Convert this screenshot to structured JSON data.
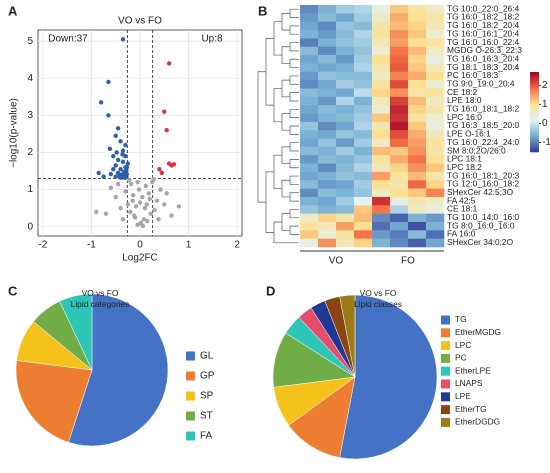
{
  "chart_data": [
    {
      "type": "scatter",
      "panel": "A",
      "title": "VO vs FO",
      "xlabel": "Log2FC",
      "ylabel": "−log10(p-value)",
      "annotations": [
        "Down:37",
        "Up:8"
      ],
      "xlim": [
        -2.1,
        2.1
      ],
      "ylim": [
        -0.25,
        5.3
      ],
      "xticks": [
        -2,
        -1,
        0,
        1,
        2
      ],
      "yticks": [
        0,
        1,
        2,
        3,
        4,
        5
      ],
      "grid": true,
      "thresholds": {
        "x": [
          -0.26,
          0.26
        ],
        "y": 1.3
      },
      "series": [
        {
          "color": "#2f5fa8",
          "x": [
            -0.35,
            -0.65,
            -0.8,
            -0.65,
            -0.45,
            -0.5,
            -0.4,
            -0.3,
            -0.35,
            -0.55,
            -0.3,
            -0.45,
            -0.35,
            -0.25,
            -0.5,
            -0.3,
            -0.4,
            -0.28,
            -0.33,
            -0.45,
            -0.27,
            -0.38,
            -0.3,
            -0.42,
            -0.5,
            -0.28,
            -0.35,
            -0.6,
            -0.75,
            -0.85,
            -0.55,
            -0.31,
            -0.4,
            -0.27,
            -0.62,
            -0.48,
            -0.36
          ],
          "y": [
            5.05,
            3.9,
            3.35,
            3.0,
            2.65,
            2.45,
            2.3,
            2.2,
            2.05,
            1.9,
            1.9,
            1.8,
            1.75,
            1.7,
            1.65,
            1.6,
            1.55,
            1.52,
            1.48,
            1.45,
            1.42,
            1.4,
            1.38,
            1.36,
            1.35,
            1.34,
            1.33,
            1.42,
            1.35,
            1.45,
            1.55,
            1.32,
            1.32,
            1.6,
            2.1,
            2.0,
            1.95
          ]
        },
        {
          "color": "#e0313a",
          "x": [
            0.6,
            0.5,
            0.55,
            0.6,
            0.65,
            0.7,
            0.4,
            0.45
          ],
          "y": [
            4.4,
            3.1,
            2.6,
            1.7,
            1.65,
            1.68,
            1.55,
            1.45
          ]
        },
        {
          "color": "#a6a6a6",
          "x": [
            -0.05,
            0.02,
            0.08,
            -0.12,
            0.15,
            -0.2,
            0.22,
            -0.08,
            0.1,
            -0.15,
            0.05,
            -0.25,
            0.18,
            -0.02,
            0.3,
            -0.3,
            0.12,
            -0.18,
            0.25,
            -0.1,
            0.35,
            -0.4,
            0.42,
            -0.5,
            0.5,
            -0.6,
            0.55,
            -0.7,
            0.65,
            0.0,
            -0.22,
            0.2,
            -0.05,
            0.06,
            -0.35,
            0.38,
            -0.45,
            0.28,
            -0.14,
            0.14,
            0.8,
            -0.9
          ],
          "y": [
            0.05,
            0.1,
            0.2,
            0.3,
            0.15,
            0.4,
            0.35,
            0.55,
            0.5,
            0.7,
            0.8,
            0.6,
            0.9,
            1.0,
            0.45,
            0.95,
            1.1,
            1.15,
            1.2,
            0.25,
            0.7,
            0.5,
            1.0,
            0.8,
            0.6,
            1.05,
            0.9,
            0.35,
            0.3,
            0.65,
            1.25,
            0.75,
            1.2,
            0.02,
            0.2,
            0.2,
            1.15,
            1.28,
            0.85,
            0.6,
            0.55,
            0.4
          ]
        }
      ]
    },
    {
      "type": "heatmap",
      "panel": "B",
      "groups": [
        "VO",
        "FO"
      ],
      "rows": [
        "TG 10:0_22:0_26:4",
        "TG 16:0_18:2_18:2",
        "TG 16:0_18:2_20:4",
        "TG 16:0_16:1_20:4",
        "TG 16:0_16:0_22:4",
        "MGDG O-26:3_22:3",
        "TG 16:0_16:3_20:4",
        "TG 18:1_18:3_20:4",
        "PC 16:0_18:3",
        "TG 9:0_19:0_20:4",
        "CE 18:2",
        "LPE 18:0",
        "TG 16:0_18:1_18:2",
        "LPC 16:0",
        "TG 16:3_18:5_20:0",
        "LPE O-16:1",
        "TG 16:0_22:4_24:0",
        "SM 8:0;2O/26:0",
        "LPC 18:1",
        "LPC 18:2",
        "TG 16:0_18:1_20:3",
        "TG 12:0_16:0_18:2",
        "SHexCer 42:5;3O",
        "FA 42:5",
        "CE 18:1",
        "TG 10:0_14:0_16:0",
        "TG 8:0_16:0_16:0",
        "FA 16:0",
        "SHexCer 34:0;2O"
      ],
      "values": [
        [
          -0.9,
          -0.6,
          -0.3,
          -0.2,
          0.4,
          1.2,
          0.9,
          0.6
        ],
        [
          -0.8,
          -0.5,
          -0.7,
          -0.3,
          0.6,
          1.4,
          1.0,
          0.8
        ],
        [
          -0.7,
          -0.9,
          -0.4,
          -0.5,
          0.8,
          1.3,
          1.1,
          0.7
        ],
        [
          -0.6,
          -0.8,
          -0.5,
          -0.2,
          0.9,
          1.6,
          1.2,
          0.5
        ],
        [
          -1.0,
          -0.6,
          -0.4,
          -0.3,
          0.7,
          1.5,
          1.0,
          0.9
        ],
        [
          -0.5,
          -0.9,
          -0.6,
          -0.4,
          0.5,
          1.8,
          1.3,
          0.6
        ],
        [
          -0.7,
          -0.5,
          -0.8,
          -0.3,
          1.0,
          1.9,
          1.1,
          0.4
        ],
        [
          -0.6,
          -0.7,
          -0.6,
          -0.2,
          0.8,
          2.0,
          1.2,
          0.7
        ],
        [
          -0.8,
          -0.4,
          -0.5,
          -0.5,
          0.6,
          1.7,
          1.4,
          1.0
        ],
        [
          -0.9,
          -0.7,
          -0.3,
          -0.4,
          0.9,
          2.1,
          1.0,
          0.5
        ],
        [
          -0.5,
          -0.6,
          -0.7,
          -0.1,
          1.1,
          1.6,
          0.8,
          0.9
        ],
        [
          -0.6,
          -0.8,
          -0.2,
          -0.6,
          0.7,
          2.2,
          1.3,
          0.6
        ],
        [
          -0.7,
          -0.5,
          -0.6,
          -0.4,
          0.5,
          2.4,
          1.1,
          0.8
        ],
        [
          -0.8,
          -0.6,
          -0.5,
          -0.3,
          1.2,
          2.3,
          0.9,
          0.5
        ],
        [
          -0.4,
          -0.9,
          -0.7,
          -0.2,
          0.8,
          2.5,
          1.2,
          0.4
        ],
        [
          -0.6,
          -0.7,
          -0.4,
          -0.5,
          1.0,
          2.1,
          1.4,
          0.7
        ],
        [
          -0.7,
          -0.4,
          -0.8,
          -0.3,
          0.6,
          1.9,
          1.5,
          0.9
        ],
        [
          -0.5,
          -0.6,
          -0.3,
          -0.6,
          1.3,
          1.2,
          1.6,
          0.8
        ],
        [
          -0.8,
          -0.5,
          -0.6,
          -0.4,
          0.9,
          1.4,
          1.8,
          1.0
        ],
        [
          -0.6,
          -0.9,
          -0.5,
          -0.2,
          0.7,
          1.1,
          1.6,
          1.2
        ],
        [
          -0.7,
          -0.6,
          -0.4,
          -0.5,
          1.5,
          0.9,
          1.3,
          0.8
        ],
        [
          -0.5,
          -0.8,
          -0.7,
          -0.3,
          1.0,
          0.8,
          1.9,
          1.1
        ],
        [
          -0.9,
          -0.5,
          -0.6,
          -0.4,
          0.6,
          1.0,
          1.2,
          1.7
        ],
        [
          -0.6,
          -0.7,
          -0.3,
          0.2,
          2.3,
          0.4,
          0.8,
          0.6
        ],
        [
          -0.4,
          -0.6,
          -0.5,
          1.2,
          1.8,
          -0.2,
          0.6,
          0.4
        ],
        [
          0.6,
          1.1,
          0.8,
          1.3,
          -0.9,
          -1.2,
          -0.6,
          -0.8
        ],
        [
          0.9,
          0.7,
          1.5,
          1.0,
          -1.1,
          -0.7,
          -1.3,
          -0.6
        ],
        [
          1.2,
          0.5,
          0.9,
          1.8,
          -0.8,
          -1.0,
          -0.5,
          -1.1
        ],
        [
          0.4,
          1.6,
          0.7,
          1.1,
          -0.6,
          -0.9,
          -1.2,
          -0.7
        ]
      ],
      "colorbar": {
        "lim": [
          -1.5,
          2.7
        ],
        "ticks": [
          -1,
          0,
          1,
          2
        ],
        "colors": [
          "#313695",
          "#74add1",
          "#e0f3f8",
          "#fee090",
          "#f46d43",
          "#a50026"
        ]
      }
    },
    {
      "type": "pie",
      "panel": "C",
      "title": "VO vs FO",
      "subtitle": "Lipid categories",
      "categories": [
        "GL",
        "GP",
        "SP",
        "ST",
        "FA"
      ],
      "values": [
        55,
        22,
        9,
        7,
        7
      ],
      "colors": [
        "#4472c4",
        "#ed7d31",
        "#f5c21b",
        "#70ad47",
        "#2ec4b6"
      ]
    },
    {
      "type": "pie",
      "panel": "D",
      "title": "VO vs FO",
      "subtitle": "Lipid classes",
      "categories": [
        "TG",
        "EtherMGDG",
        "LPC",
        "PC",
        "EtherLPE",
        "LNAPS",
        "LPE",
        "EtherTG",
        "EtherDGDG"
      ],
      "values": [
        53,
        12,
        8,
        11,
        4,
        3,
        3,
        3,
        3
      ],
      "colors": [
        "#4472c4",
        "#ed7d31",
        "#f5c21b",
        "#70ad47",
        "#2ec4b6",
        "#e74c6b",
        "#1f3a93",
        "#8b4513",
        "#9c7a15"
      ]
    }
  ]
}
